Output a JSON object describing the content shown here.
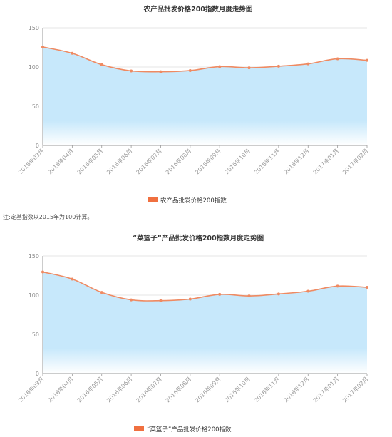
{
  "colors": {
    "line": "#ef8a62",
    "marker": "#ef8a62",
    "area_top": "#c7e8fb",
    "area_bottom": "#ffffff",
    "legend_swatch": "#f07040",
    "grid": "#dcdcdc",
    "axis": "#999999"
  },
  "note": "注:定基指数以2015年为100计算。",
  "chart_data": [
    {
      "type": "area",
      "title": "农产品批发价格200指数月度走势图",
      "legend": "农产品批发价格200指数",
      "categories": [
        "2016年03月",
        "2016年04月",
        "2016年05月",
        "2016年06月",
        "2016年07月",
        "2016年08月",
        "2016年09月",
        "2016年10月",
        "2016年11月",
        "2016年12月",
        "2017年01月",
        "2017年02月"
      ],
      "series": [
        {
          "name": "农产品批发价格200指数",
          "values": [
            125.5,
            117.5,
            103,
            95,
            94,
            95.5,
            100.5,
            99,
            101,
            104,
            110.5,
            108.5
          ]
        }
      ],
      "ylim": [
        0,
        150
      ],
      "yticks": [
        "0",
        "50",
        "100",
        "150"
      ],
      "grid": true,
      "legend_position": "bottom-center"
    },
    {
      "type": "area",
      "title": "“菜篮子”产品批发价格200指数月度走势图",
      "legend": "“菜篮子”产品批发价格200指数",
      "categories": [
        "2016年03月",
        "2016年04月",
        "2016年05月",
        "2016年06月",
        "2016年07月",
        "2016年08月",
        "2016年09月",
        "2016年10月",
        "2016年11月",
        "2016年12月",
        "2017年01月",
        "2017年02月"
      ],
      "series": [
        {
          "name": "“菜篮子”产品批发价格200指数",
          "values": [
            129.5,
            120.5,
            103.5,
            94,
            93,
            95,
            101,
            99,
            101.5,
            105,
            111.5,
            110
          ]
        }
      ],
      "ylim": [
        0,
        150
      ],
      "yticks": [
        "0",
        "50",
        "100",
        "150"
      ],
      "grid": true,
      "legend_position": "bottom-center"
    }
  ]
}
